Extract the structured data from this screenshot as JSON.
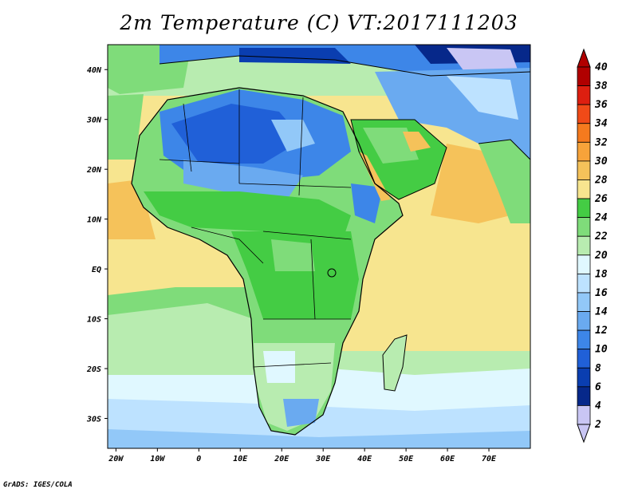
{
  "title": "2m Temperature (C) VT:2017111203",
  "credit": "GrADS: IGES/COLA",
  "map": {
    "region": "Africa and Middle East",
    "lon_range": [
      -22,
      80
    ],
    "lat_range": [
      -36,
      45
    ],
    "lon_ticks": [
      "20W",
      "10W",
      "0",
      "10E",
      "20E",
      "30E",
      "40E",
      "50E",
      "60E",
      "70E"
    ],
    "lat_ticks": [
      "40N",
      "30N",
      "20N",
      "10N",
      "EQ",
      "10S",
      "20S",
      "30S"
    ],
    "background_color": "#f7e58f"
  },
  "colorbar": {
    "labels": [
      "40",
      "38",
      "36",
      "34",
      "32",
      "30",
      "28",
      "26",
      "24",
      "22",
      "20",
      "18",
      "16",
      "14",
      "12",
      "10",
      "8",
      "6",
      "4",
      "2"
    ],
    "colors": [
      "#b00000",
      "#dd1f10",
      "#f04a18",
      "#f57a1e",
      "#f7a33a",
      "#f5c25a",
      "#f7e58f",
      "#44cc44",
      "#7fdc7a",
      "#b8ecb0",
      "#e0f8ff",
      "#bde2ff",
      "#92c8f8",
      "#6aaaf0",
      "#3d86e8",
      "#2060d8",
      "#0a3eb0",
      "#06288a",
      "#c9c6f4"
    ]
  }
}
